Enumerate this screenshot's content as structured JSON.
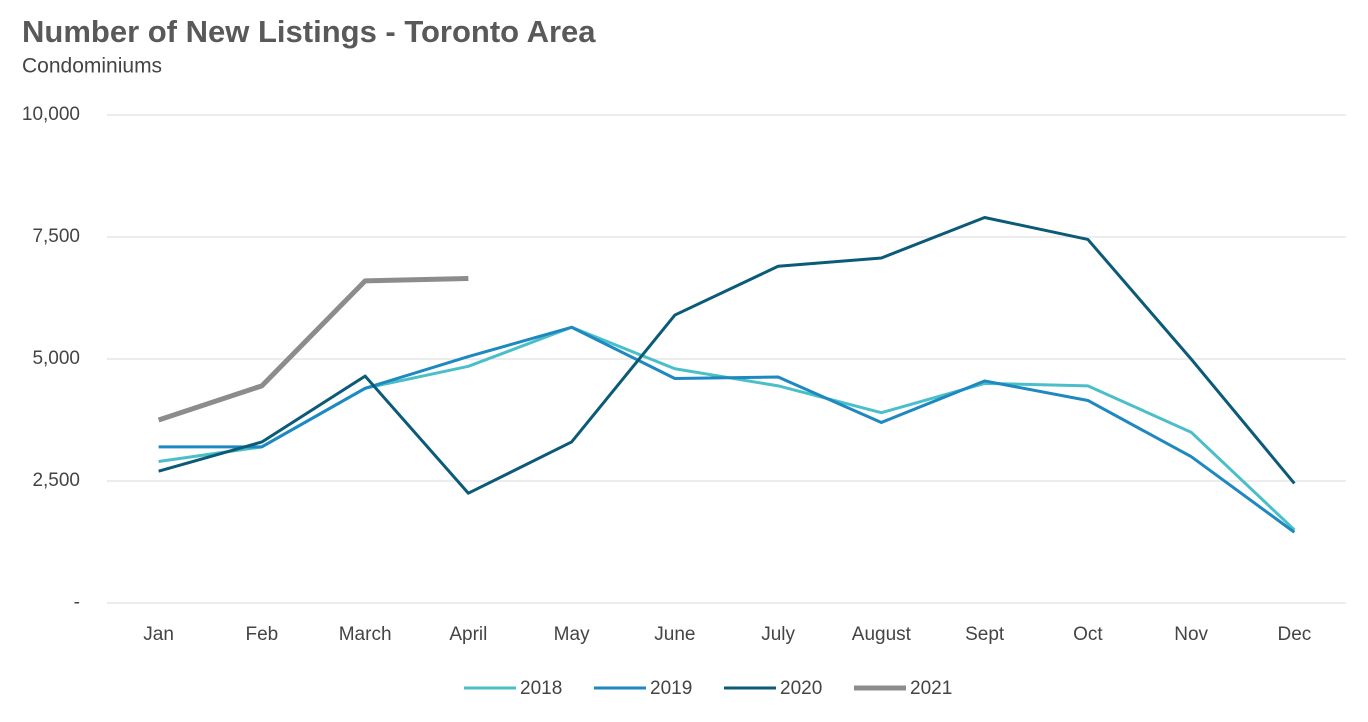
{
  "chart_data": {
    "type": "line",
    "title": "Number of New Listings - Toronto Area",
    "subtitle": "Condominiums",
    "categories": [
      "Jan",
      "Feb",
      "March",
      "April",
      "May",
      "June",
      "July",
      "August",
      "Sept",
      "Oct",
      "Nov",
      "Dec"
    ],
    "series": [
      {
        "name": "2018",
        "color": "#4bbfc9",
        "values": [
          2900,
          3200,
          4400,
          4850,
          5650,
          4800,
          4450,
          3900,
          4500,
          4450,
          3500,
          1500
        ]
      },
      {
        "name": "2019",
        "color": "#1e88c0",
        "values": [
          3200,
          3200,
          4400,
          5050,
          5650,
          4600,
          4630,
          3700,
          4550,
          4150,
          3000,
          1450
        ]
      },
      {
        "name": "2020",
        "color": "#0b5a78",
        "values": [
          2700,
          3300,
          4650,
          2250,
          3300,
          5900,
          6900,
          7070,
          7900,
          7450,
          5000,
          2450
        ]
      },
      {
        "name": "2021",
        "color": "#8c8c8c",
        "values": [
          3750,
          4450,
          6600,
          6650,
          null,
          null,
          null,
          null,
          null,
          null,
          null,
          null
        ]
      }
    ],
    "ylim": [
      0,
      10000
    ],
    "yticks": [
      {
        "value": 0,
        "label": "-"
      },
      {
        "value": 2500,
        "label": "2,500"
      },
      {
        "value": 5000,
        "label": "5,000"
      },
      {
        "value": 7500,
        "label": "7,500"
      },
      {
        "value": 10000,
        "label": "10,000"
      }
    ],
    "grid": true,
    "legend": "bottom"
  }
}
